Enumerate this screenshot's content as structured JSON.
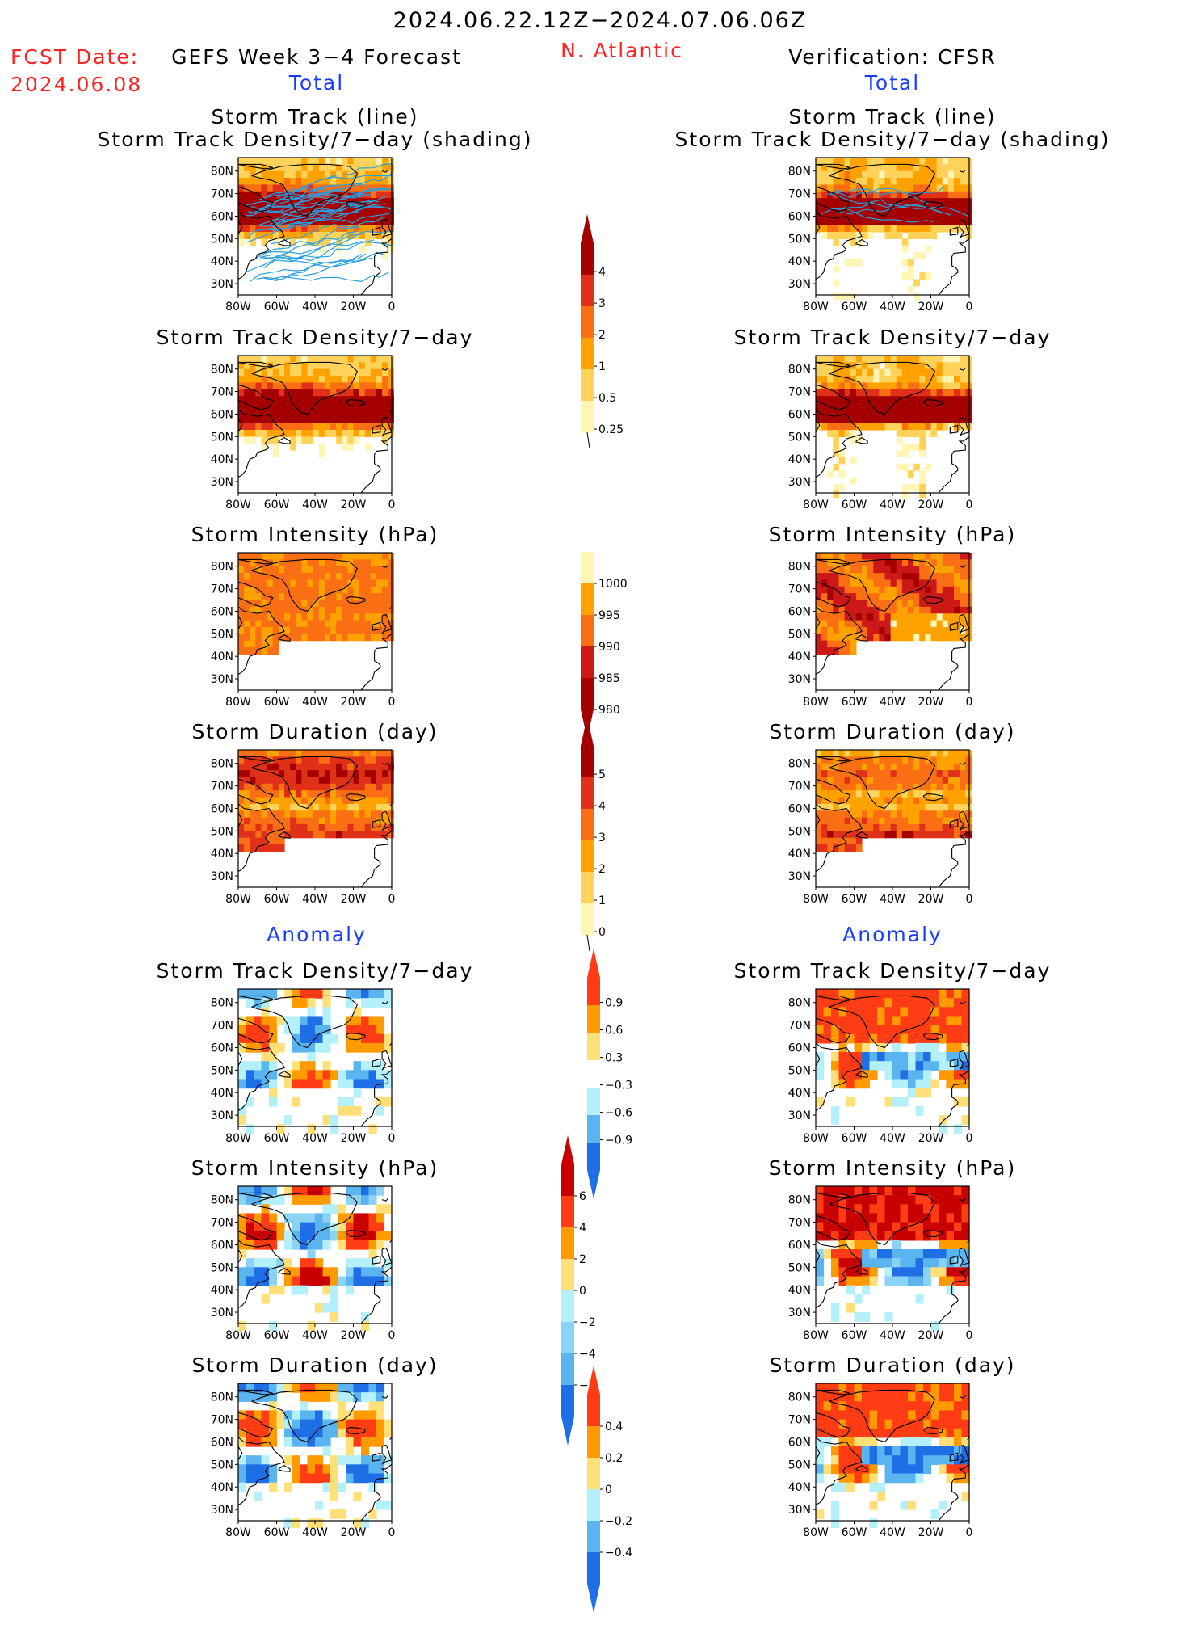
{
  "header": {
    "date_range": "2024.06.22.12Z−2024.07.06.06Z",
    "fcst_label": "FCST Date:",
    "fcst_date": "2024.06.08",
    "forecast_title": "GEFS Week 3−4 Forecast",
    "region": "N. Atlantic",
    "verification_title": "Verification: CFSR"
  },
  "sections": {
    "total": "Total",
    "anomaly": "Anomaly"
  },
  "panel_titles": {
    "track_line": "Storm Track (line)",
    "track_shading": "Storm Track Density/7−day (shading)",
    "density": "Storm Track Density/7−day",
    "intensity": "Storm Intensity (hPa)",
    "duration": "Storm Duration (day)"
  },
  "axis": {
    "x_ticks": [
      "80W",
      "60W",
      "40W",
      "20W",
      "0"
    ],
    "y_ticks": [
      "80N",
      "70N",
      "60N",
      "50N",
      "40N",
      "30N"
    ]
  },
  "colorbars": {
    "density_total": {
      "labels": [
        "4",
        "3",
        "2",
        "1",
        "0.5",
        "0.25"
      ],
      "colors": [
        "#a50000",
        "#e03018",
        "#fa6e14",
        "#ffa200",
        "#ffd25a",
        "#fff5b4"
      ]
    },
    "intensity_total": {
      "labels": [
        "1000",
        "995",
        "990",
        "985",
        "980"
      ],
      "colors": [
        "#fff5b4",
        "#ffa200",
        "#fa6e14",
        "#cd1818",
        "#a50000"
      ]
    },
    "duration_total": {
      "labels": [
        "5",
        "4",
        "3",
        "2",
        "1",
        "0"
      ],
      "colors": [
        "#a50000",
        "#e03018",
        "#fa6e14",
        "#ffa200",
        "#ffd25a",
        "#fff5b4"
      ]
    },
    "density_anom": {
      "labels": [
        "0.9",
        "0.6",
        "0.3",
        "−0.3",
        "−0.6",
        "−0.9"
      ],
      "colors": [
        "#ff3c14",
        "#ff9a00",
        "#ffe078",
        "#ffffff",
        "#b4f0fa",
        "#5ab4f0",
        "#1e6ee6"
      ]
    },
    "intensity_anom": {
      "labels": [
        "6",
        "4",
        "2",
        "0",
        "−2",
        "−4",
        "−6"
      ],
      "colors": [
        "#c80000",
        "#ff3c14",
        "#ff9a00",
        "#ffe078",
        "#b4f0fa",
        "#8cd2f5",
        "#5ab4f0",
        "#1e6ee6"
      ]
    },
    "duration_anom": {
      "labels": [
        "0.4",
        "0.2",
        "0",
        "−0.2",
        "−0.4"
      ],
      "colors": [
        "#ff3c14",
        "#ff9a00",
        "#ffe078",
        "#b4f0fa",
        "#5ab4f0",
        "#1e6ee6"
      ]
    }
  }
}
